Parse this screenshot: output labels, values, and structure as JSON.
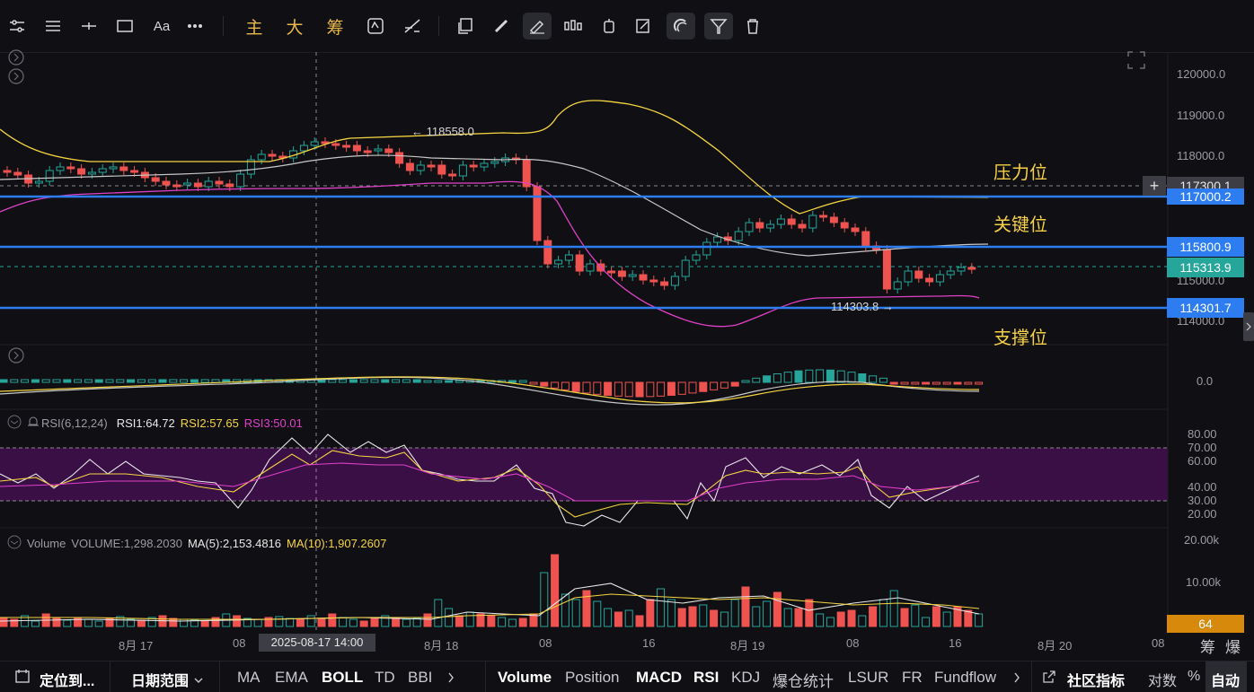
{
  "toolbar": {
    "main_label": "主",
    "big_label": "大",
    "chip_label": "筹",
    "text_tool": "Aa"
  },
  "chart": {
    "price_axis": [
      "120000.0",
      "119000.0",
      "118000.0",
      "117000.0",
      "116000.0",
      "115000.0",
      "114000.0"
    ],
    "macd_axis": "0.0",
    "rsi_axis": [
      "80.00",
      "70.00",
      "60.00",
      "40.00",
      "30.00",
      "20.00"
    ],
    "vol_axis": [
      "20.00k",
      "10.00k"
    ],
    "lines": {
      "resistance": "117000.2",
      "key": "115800.9",
      "support": "114301.7",
      "crosshair": "117300.1",
      "last_price": "115313.9"
    },
    "annotations": {
      "resistance": "压力位",
      "key": "关键位",
      "support": "支撑位"
    },
    "high_marker": "118558.0",
    "low_marker": "114303.8",
    "colors": {
      "up": "#26a69a",
      "down": "#ef5350",
      "line_blue": "#2d7cf0",
      "boll_upper": "#f5d442",
      "boll_mid": "#c8c8c8",
      "boll_lower": "#e040c8",
      "rsi_band": "#3a0f46"
    }
  },
  "rsi": {
    "title": "RSI(6,12,24)",
    "rsi1": "RSI1:64.72",
    "rsi2": "RSI2:57.65",
    "rsi3": "RSI3:50.01"
  },
  "volume": {
    "title": "Volume",
    "value": "VOLUME:1,298.2030",
    "ma5": "MA(5):2,153.4816",
    "ma10": "MA(10):1,907.2607",
    "countdown": "64"
  },
  "xaxis": {
    "labels": [
      "8月 17",
      "08",
      "8月 18",
      "08",
      "16",
      "8月 19",
      "08",
      "16",
      "8月 20",
      "08"
    ],
    "cursor_time": "2025-08-17 14:00",
    "chip": "筹",
    "explode": "爆"
  },
  "bottom_bar": {
    "locate": "定位到...",
    "date_range": "日期范围",
    "main_inds": [
      "MA",
      "EMA",
      "BOLL",
      "TD",
      "BBI"
    ],
    "sub_inds": [
      "Volume",
      "Position",
      "MACD",
      "RSI",
      "KDJ",
      "爆仓统计",
      "LSUR",
      "FR",
      "Fundflow"
    ],
    "community": "社区指标",
    "log": "对数",
    "percent": "%",
    "auto": "自动"
  }
}
